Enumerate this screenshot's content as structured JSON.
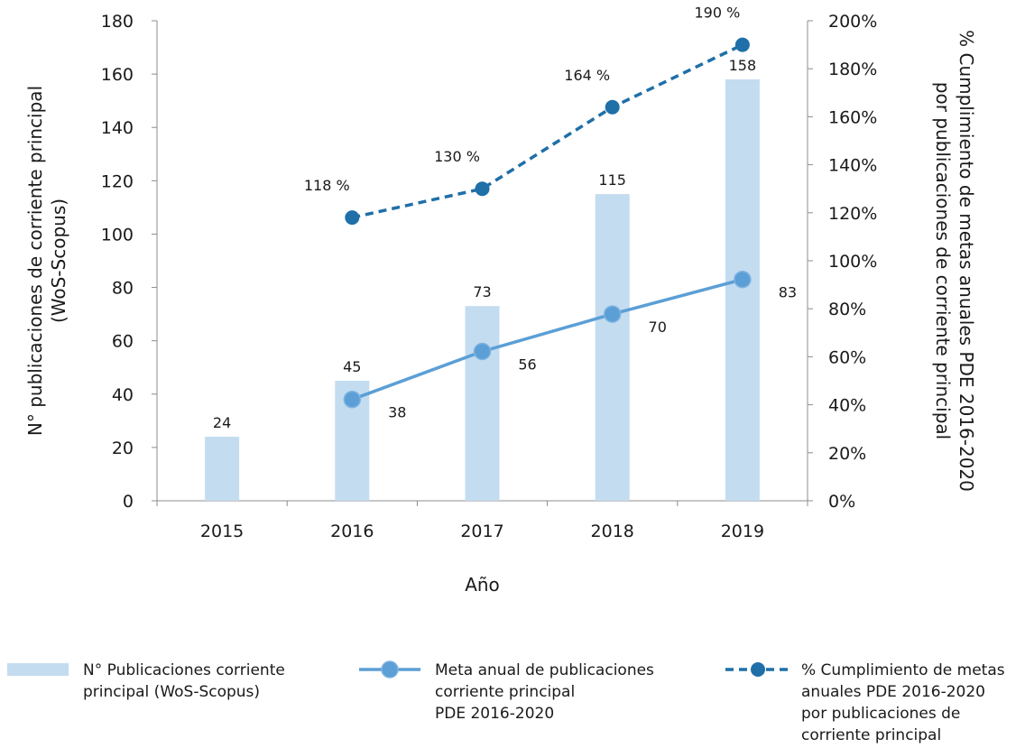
{
  "chart_data": {
    "type": "bar",
    "categories": [
      "2015",
      "2016",
      "2017",
      "2018",
      "2019"
    ],
    "xlabel": "Año",
    "ylabel": [
      "N° publicaciones de corriente principal",
      "(WoS-Scopus)"
    ],
    "y2label": [
      "% Cumplimiento de metas anuales PDE 2016-2020",
      "por publicaciones de corriente principal"
    ],
    "ylim": [
      0,
      180
    ],
    "y2lim": [
      0,
      200
    ],
    "yticks": [
      "0",
      "20",
      "40",
      "60",
      "80",
      "100",
      "120",
      "140",
      "160",
      "180"
    ],
    "y2ticks": [
      "0%",
      "20%",
      "40%",
      "60%",
      "80%",
      "100%",
      "120%",
      "140%",
      "160%",
      "180%",
      "200%"
    ],
    "grid": false,
    "legend_position": "bottom",
    "series": [
      {
        "name": "N° Publicaciones corriente principal (WoS-Scopus)",
        "legend_lines": [
          "N° Publicaciones corriente",
          "principal (WoS-Scopus)"
        ],
        "type": "bar",
        "axis": "left",
        "values": [
          24,
          45,
          73,
          115,
          158
        ],
        "labels": [
          "24",
          "45",
          "73",
          "115",
          "158"
        ],
        "color": "#c3dcf0"
      },
      {
        "name": "Meta anual de publicaciones corriente principal PDE 2016-2020",
        "legend_lines": [
          "Meta anual de publicaciones",
          "corriente principal",
          "PDE 2016-2020"
        ],
        "type": "line",
        "axis": "left",
        "values": [
          null,
          38,
          56,
          70,
          83
        ],
        "labels": [
          "",
          "38",
          "56",
          "70",
          "83"
        ],
        "color": "#5b9fd6"
      },
      {
        "name": "% Cumplimiento de metas anuales PDE 2016-2020 por publicaciones de corriente principal",
        "legend_lines": [
          "% Cumplimiento de metas",
          "anuales PDE 2016-2020",
          "por publicaciones de",
          "corriente principal"
        ],
        "type": "line",
        "dashed": true,
        "axis": "right",
        "values": [
          null,
          118,
          130,
          164,
          190
        ],
        "labels": [
          "",
          "118  %",
          "130  %",
          "164  %",
          "190  %"
        ],
        "color": "#1f6fa8"
      }
    ]
  }
}
